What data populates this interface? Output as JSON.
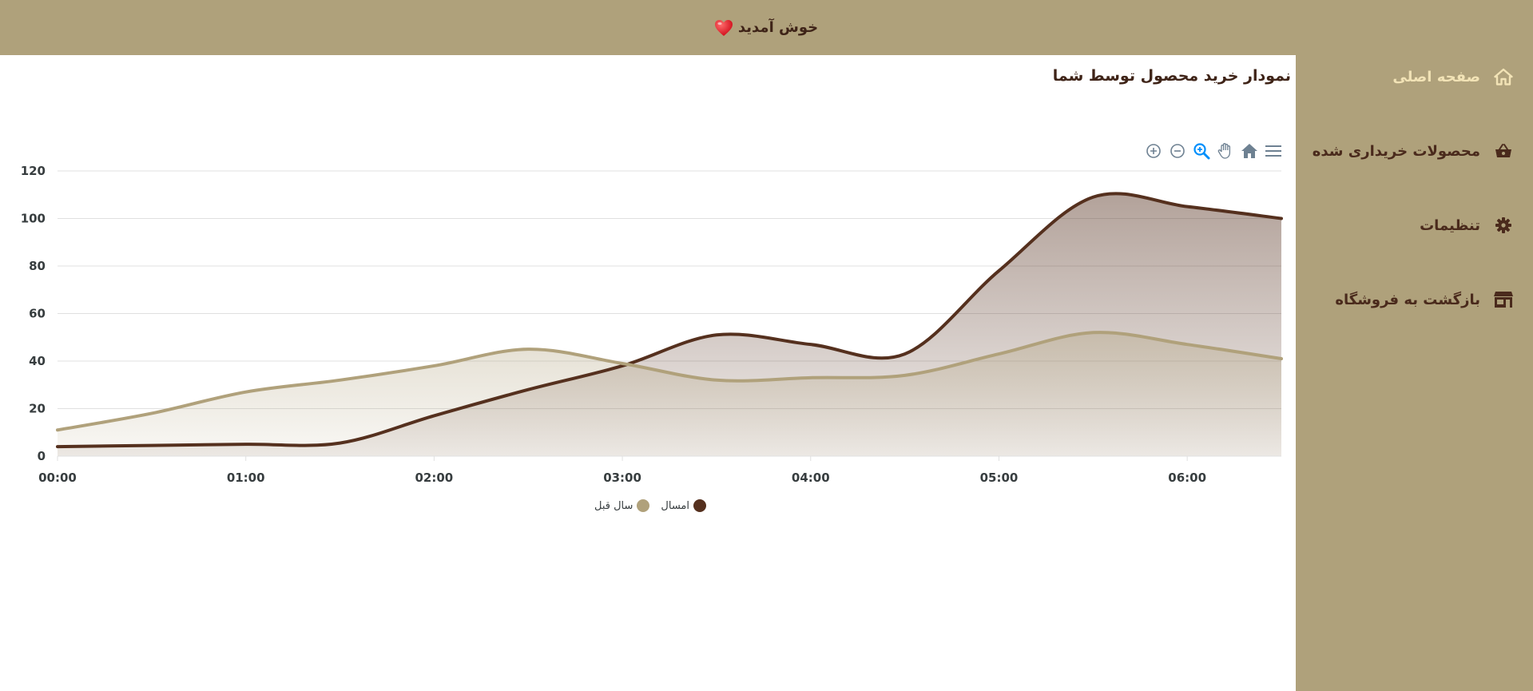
{
  "header": {
    "welcome": "خوش آمدید"
  },
  "sidebar": {
    "items": [
      {
        "label": "صفحه اصلی",
        "icon": "home-icon",
        "active": true
      },
      {
        "label": "محصولات خریداری شده",
        "icon": "shopping-basket-icon",
        "active": false
      },
      {
        "label": "تنظیمات",
        "icon": "gear-icon",
        "active": false
      },
      {
        "label": "بازگشت به فروشگاه",
        "icon": "store-icon",
        "active": false
      }
    ]
  },
  "colors": {
    "brand": "#afa17b",
    "dark_brown": "#4a2a1c",
    "active_text": "#f2e3b6",
    "series_this_year": "#55301e",
    "series_last_year": "#b0a17b",
    "toolbar_active": "#008ffb"
  },
  "chart": {
    "title": "نمودار خرید محصول توسط شما",
    "toolbar": [
      "zoom-in-icon",
      "zoom-out-icon",
      "magnifier-icon",
      "pan-hand-icon",
      "reset-home-icon",
      "menu-icon"
    ]
  },
  "chart_data": {
    "type": "area",
    "curve": "smooth",
    "x": [
      "00:00",
      "00:30",
      "01:00",
      "01:30",
      "02:00",
      "02:30",
      "03:00",
      "03:30",
      "04:00",
      "04:30",
      "05:00",
      "05:30",
      "06:00",
      "06:30"
    ],
    "x_ticks": [
      "00:00",
      "01:00",
      "02:00",
      "03:00",
      "04:00",
      "05:00",
      "06:00"
    ],
    "ylim": [
      0,
      120
    ],
    "y_ticks": [
      0,
      20,
      40,
      60,
      80,
      100,
      120
    ],
    "grid": true,
    "legend_position": "bottom-center",
    "series": [
      {
        "name": "امسال",
        "color": "#55301e",
        "values": [
          4,
          4.5,
          5,
          5.5,
          17,
          28,
          38,
          51,
          47,
          43,
          78,
          109,
          105,
          100
        ]
      },
      {
        "name": "سال قبل",
        "color": "#b0a17b",
        "values": [
          11,
          18,
          27,
          32,
          38,
          45,
          39,
          32,
          33,
          34,
          43,
          52,
          47,
          41
        ]
      }
    ]
  }
}
